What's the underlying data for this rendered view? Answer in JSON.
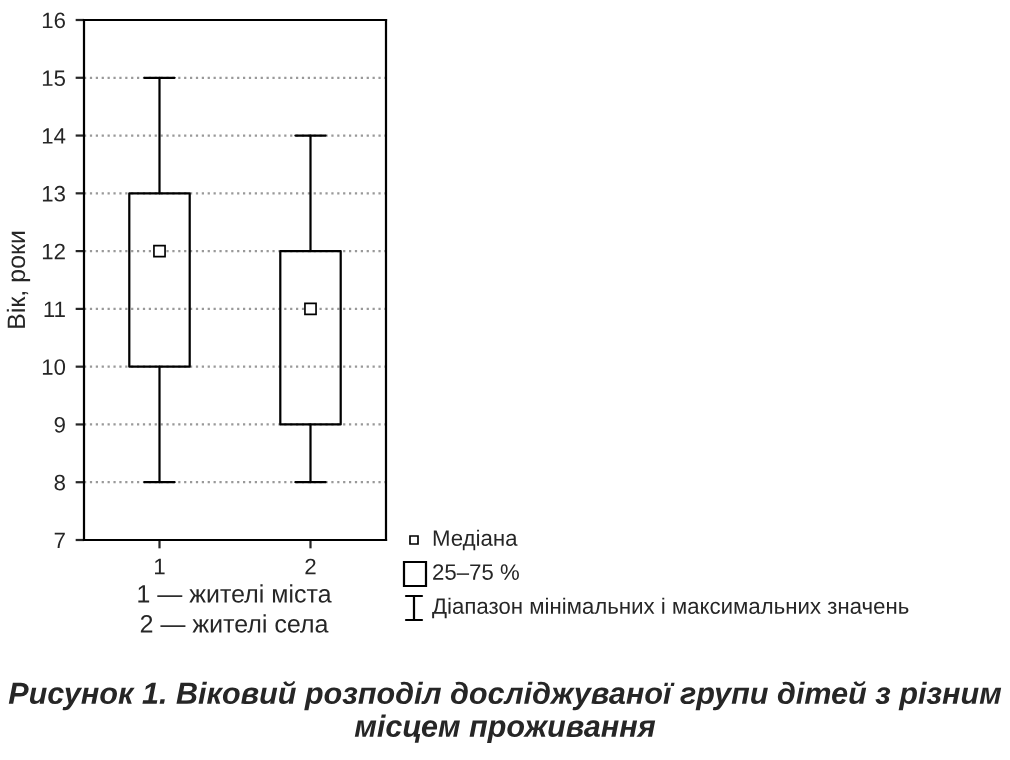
{
  "chart_data": {
    "type": "box",
    "title": "Рисунок 1. Віковий розподіл досліджуваної групи дітей з різним місцем проживання",
    "ylabel": "Вік, роки",
    "categories": [
      "1",
      "2"
    ],
    "boxes": [
      {
        "low": 8,
        "q1": 10,
        "median": 12,
        "q3": 13,
        "high": 15
      },
      {
        "low": 8,
        "q1": 9,
        "median": 11,
        "q3": 12,
        "high": 14
      }
    ],
    "color": "#000000",
    "ylim": [
      7,
      16
    ],
    "yticks": [
      7,
      8,
      9,
      10,
      11,
      12,
      13,
      14,
      15,
      16
    ],
    "grid": "y",
    "marker": "square",
    "annotations": [
      "1 — жителі міста",
      "2 — жителі села",
      "Медіана",
      "25–75 %",
      "Діапазон мінімальних і максимальних значень"
    ]
  }
}
